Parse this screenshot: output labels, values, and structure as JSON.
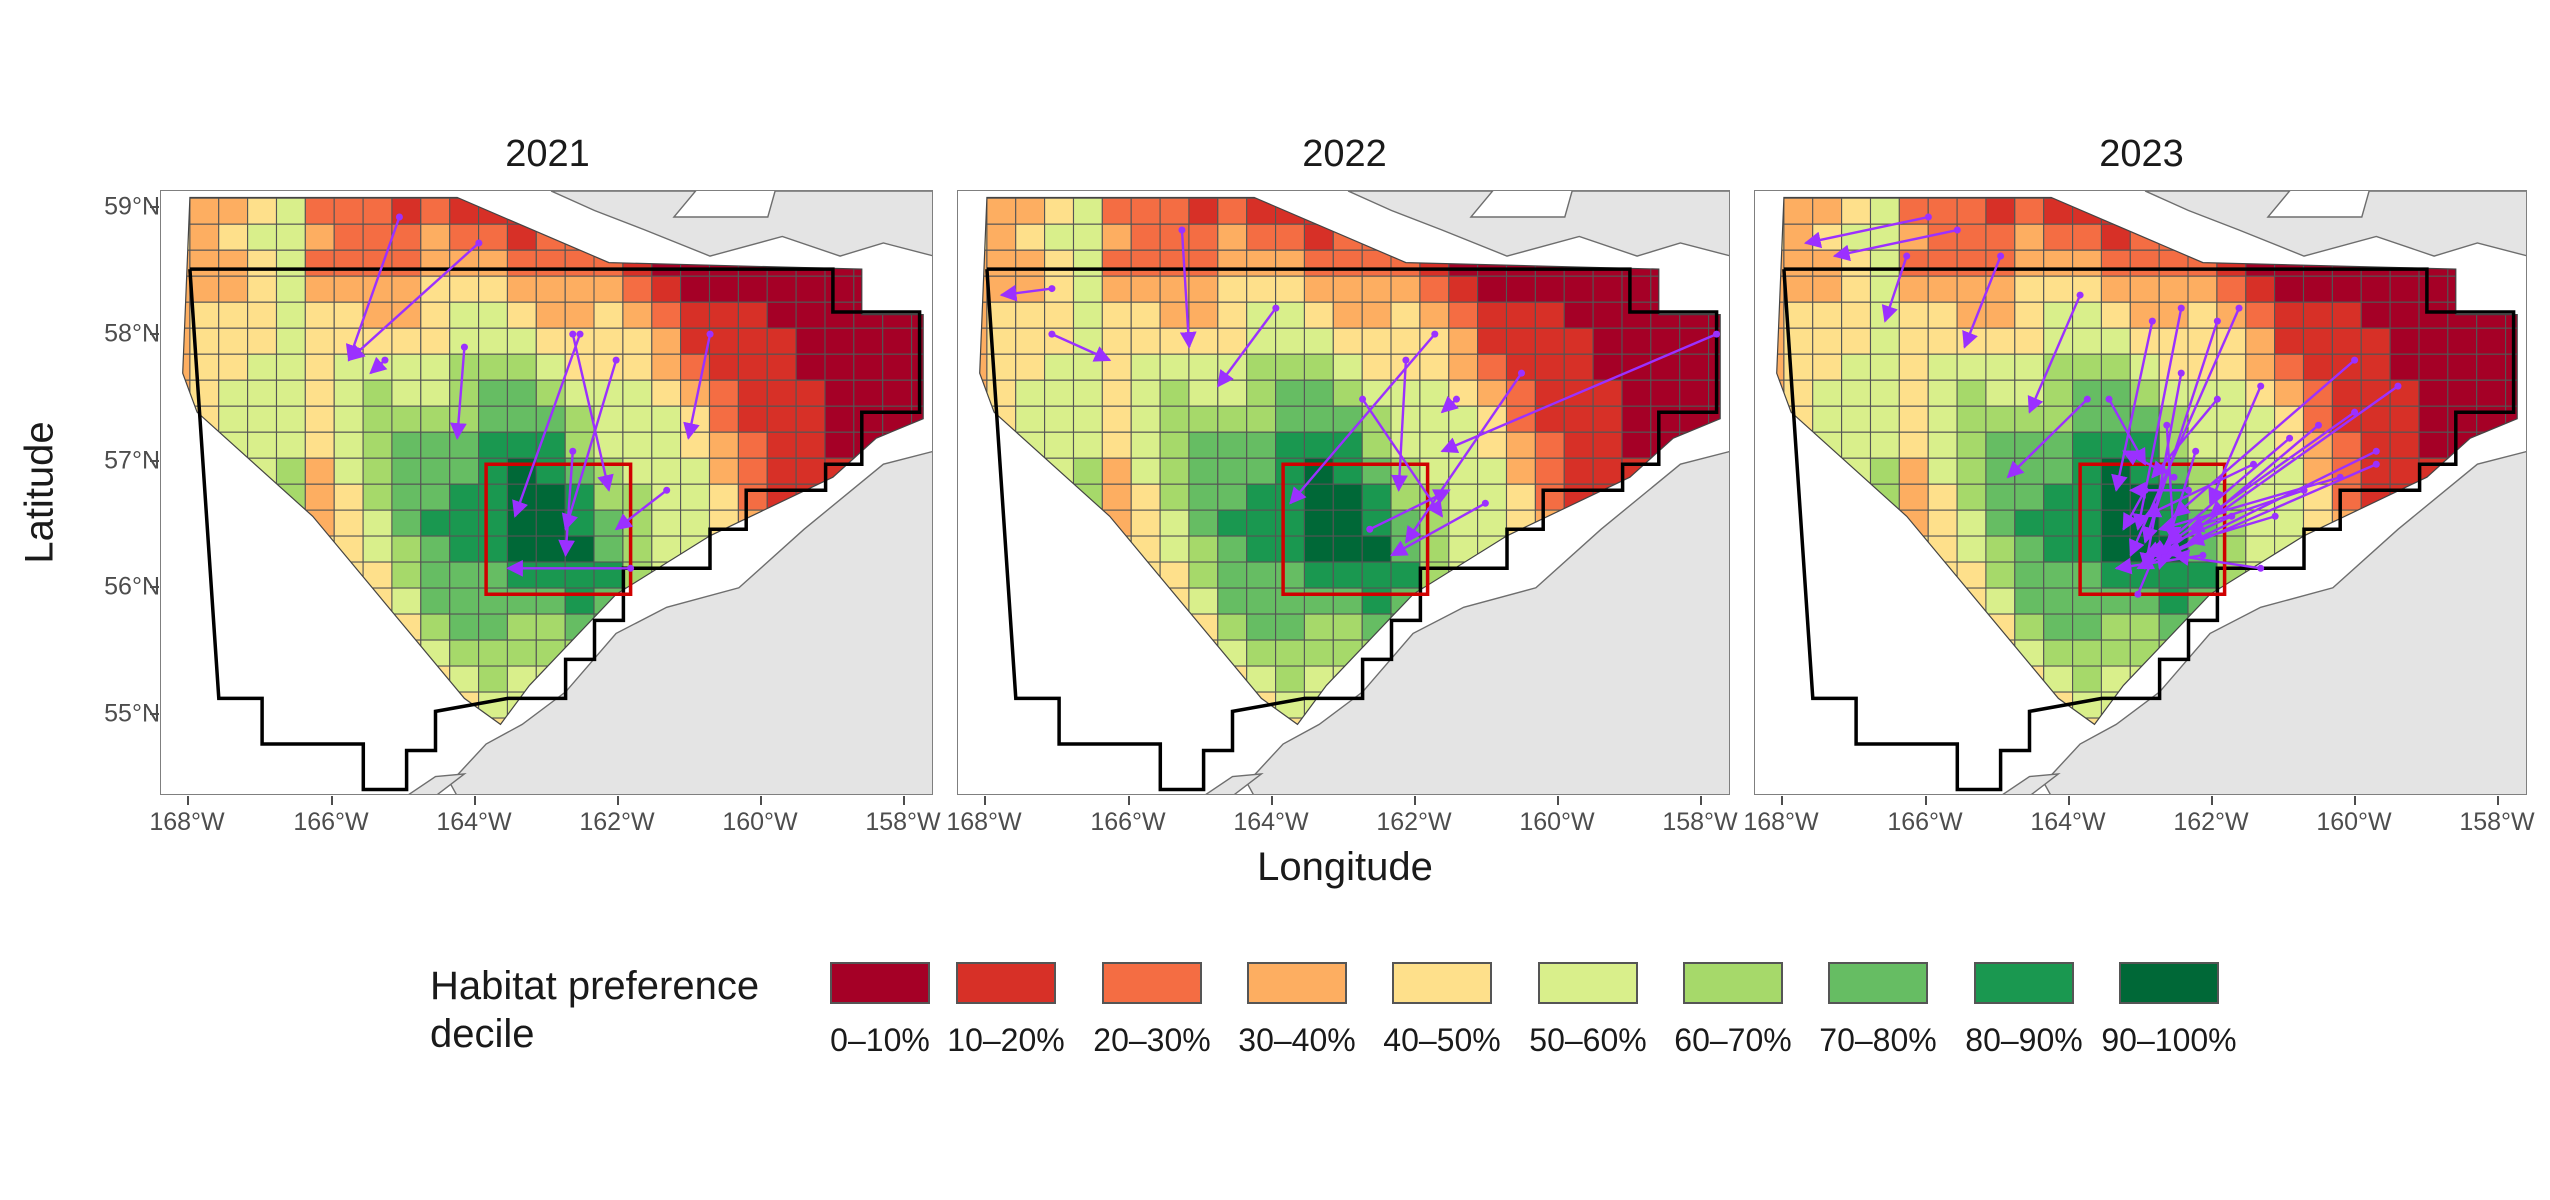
{
  "figure": {
    "x_axis_title": "Longitude",
    "y_axis_title": "Latitude",
    "lon_ticks": [
      "168°W",
      "166°W",
      "164°W",
      "162°W",
      "160°W",
      "158°W"
    ],
    "lat_ticks": [
      "59°N",
      "58°N",
      "57°N",
      "56°N",
      "55°N"
    ],
    "lon_tick_values": [
      -168,
      -166,
      -164,
      -162,
      -160,
      -158
    ],
    "lat_tick_values": [
      59,
      58,
      57,
      56,
      55
    ],
    "map_extent": {
      "lon": [
        -168.6,
        -157.9
      ],
      "lat": [
        54.45,
        59.1
      ]
    },
    "colors": {
      "land": "#e4e4e4",
      "land_border": "#6e6e6e",
      "survey_boundary": "#000000",
      "focal_box": "#d00000",
      "tracks": "#9b30ff",
      "grid_lines": "#555555"
    }
  },
  "panels": [
    {
      "year": "2021",
      "track_count": 11
    },
    {
      "year": "2022",
      "track_count": 12
    },
    {
      "year": "2023",
      "track_count": 34
    }
  ],
  "legend": {
    "title": "Habitat preference decile",
    "title_line1": "Habitat preference",
    "title_line2": "decile",
    "items": [
      {
        "label": "0–10%",
        "color": "#a50026"
      },
      {
        "label": "10–20%",
        "color": "#d73027"
      },
      {
        "label": "20–30%",
        "color": "#f46d43"
      },
      {
        "label": "30–40%",
        "color": "#fdae61"
      },
      {
        "label": "40–50%",
        "color": "#fee08b"
      },
      {
        "label": "50–60%",
        "color": "#d9ef8b"
      },
      {
        "label": "60–70%",
        "color": "#a6d96a"
      },
      {
        "label": "70–80%",
        "color": "#66bd63"
      },
      {
        "label": "80–90%",
        "color": "#1a9850"
      },
      {
        "label": "90–100%",
        "color": "#006837"
      }
    ]
  }
}
